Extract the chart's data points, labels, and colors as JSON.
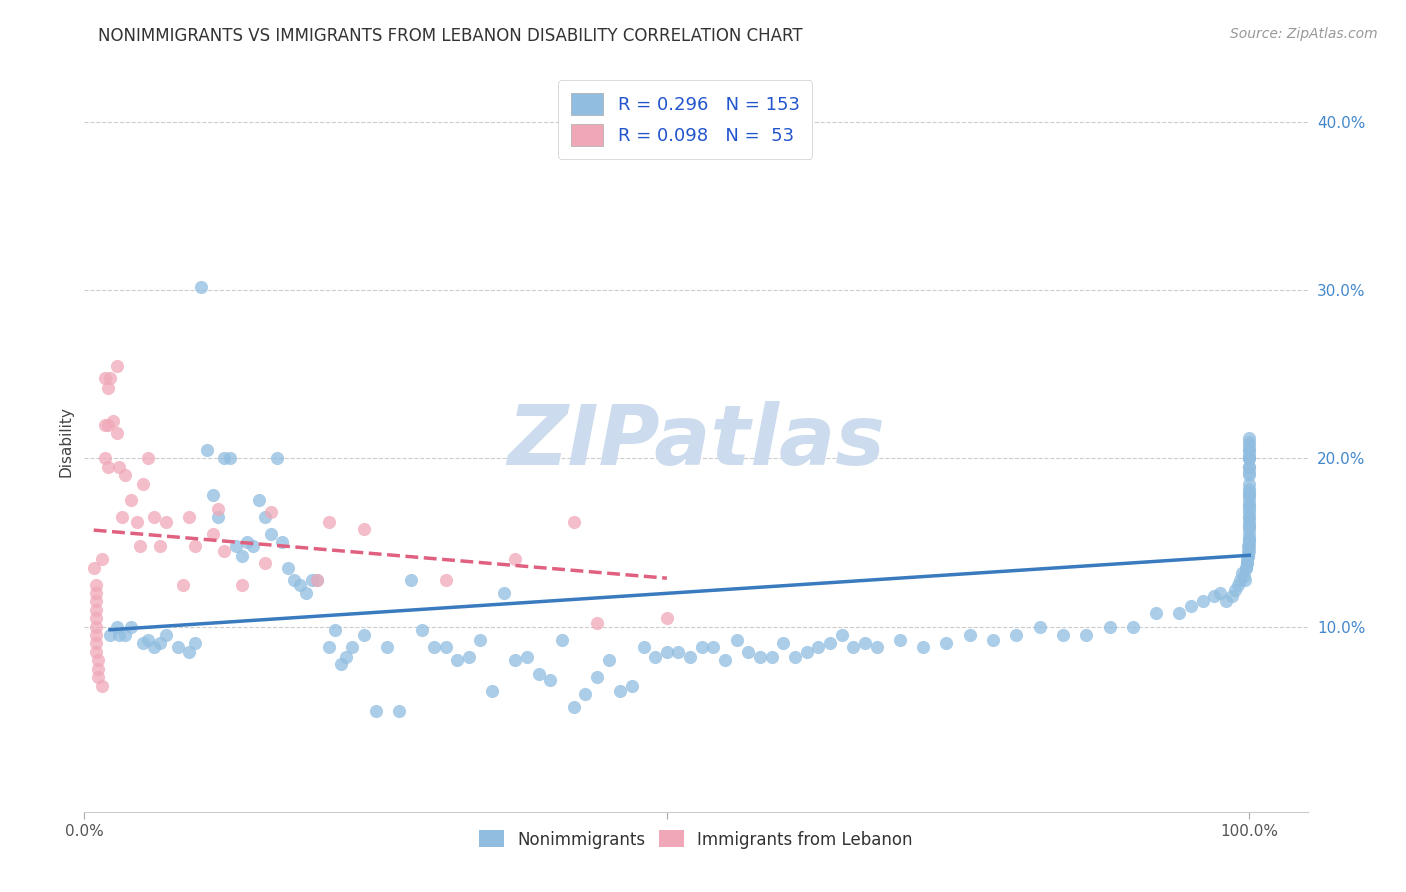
{
  "title": "NONIMMIGRANTS VS IMMIGRANTS FROM LEBANON DISABILITY CORRELATION CHART",
  "source": "Source: ZipAtlas.com",
  "ylabel": "Disability",
  "xlim": [
    0,
    1.05
  ],
  "ylim": [
    -0.01,
    0.43
  ],
  "nonimm_R": "0.296",
  "nonimm_N": "153",
  "imm_R": "0.098",
  "imm_N": " 53",
  "nonimm_color": "#90bde0",
  "imm_color": "#f0a8b8",
  "nonimm_line_color": "#3a7abf",
  "imm_line_color": "#e06080",
  "bg_color": "#ffffff",
  "watermark": "ZIPatlas",
  "watermark_color": "#ccdcee",
  "grid_color": "#cccccc",
  "nonimm_x": [
    0.022,
    0.028,
    0.03,
    0.035,
    0.04,
    0.05,
    0.055,
    0.06,
    0.065,
    0.07,
    0.08,
    0.09,
    0.095,
    0.1,
    0.105,
    0.11,
    0.115,
    0.12,
    0.125,
    0.13,
    0.135,
    0.14,
    0.145,
    0.15,
    0.155,
    0.16,
    0.165,
    0.17,
    0.175,
    0.18,
    0.185,
    0.19,
    0.195,
    0.2,
    0.21,
    0.215,
    0.22,
    0.225,
    0.23,
    0.24,
    0.25,
    0.26,
    0.27,
    0.28,
    0.29,
    0.3,
    0.31,
    0.32,
    0.33,
    0.34,
    0.35,
    0.36,
    0.37,
    0.38,
    0.39,
    0.4,
    0.41,
    0.42,
    0.43,
    0.44,
    0.45,
    0.46,
    0.47,
    0.48,
    0.49,
    0.5,
    0.51,
    0.52,
    0.53,
    0.54,
    0.55,
    0.56,
    0.57,
    0.58,
    0.59,
    0.6,
    0.61,
    0.62,
    0.63,
    0.64,
    0.65,
    0.66,
    0.67,
    0.68,
    0.7,
    0.72,
    0.74,
    0.76,
    0.78,
    0.8,
    0.82,
    0.84,
    0.86,
    0.88,
    0.9,
    0.92,
    0.94,
    0.95,
    0.96,
    0.97,
    0.975,
    0.98,
    0.985,
    0.988,
    0.99,
    0.992,
    0.994,
    0.995,
    0.996,
    0.997,
    0.997,
    0.998,
    0.998,
    0.998,
    0.999,
    0.999,
    0.999,
    0.999,
    1.0,
    1.0,
    1.0,
    1.0,
    1.0,
    1.0,
    1.0,
    1.0,
    1.0,
    1.0,
    1.0,
    1.0,
    1.0,
    1.0,
    1.0,
    1.0,
    1.0,
    1.0,
    1.0,
    1.0,
    1.0,
    1.0,
    1.0,
    1.0,
    1.0,
    1.0,
    1.0,
    1.0,
    1.0,
    1.0,
    1.0,
    1.0,
    1.0,
    1.0,
    1.0
  ],
  "nonimm_y": [
    0.095,
    0.1,
    0.095,
    0.095,
    0.1,
    0.09,
    0.092,
    0.088,
    0.09,
    0.095,
    0.088,
    0.085,
    0.09,
    0.302,
    0.205,
    0.178,
    0.165,
    0.2,
    0.2,
    0.148,
    0.142,
    0.15,
    0.148,
    0.175,
    0.165,
    0.155,
    0.2,
    0.15,
    0.135,
    0.128,
    0.125,
    0.12,
    0.128,
    0.128,
    0.088,
    0.098,
    0.078,
    0.082,
    0.088,
    0.095,
    0.05,
    0.088,
    0.05,
    0.128,
    0.098,
    0.088,
    0.088,
    0.08,
    0.082,
    0.092,
    0.062,
    0.12,
    0.08,
    0.082,
    0.072,
    0.068,
    0.092,
    0.052,
    0.06,
    0.07,
    0.08,
    0.062,
    0.065,
    0.088,
    0.082,
    0.085,
    0.085,
    0.082,
    0.088,
    0.088,
    0.08,
    0.092,
    0.085,
    0.082,
    0.082,
    0.09,
    0.082,
    0.085,
    0.088,
    0.09,
    0.095,
    0.088,
    0.09,
    0.088,
    0.092,
    0.088,
    0.09,
    0.095,
    0.092,
    0.095,
    0.1,
    0.095,
    0.095,
    0.1,
    0.1,
    0.108,
    0.108,
    0.112,
    0.115,
    0.118,
    0.12,
    0.115,
    0.118,
    0.122,
    0.125,
    0.128,
    0.132,
    0.13,
    0.128,
    0.135,
    0.135,
    0.138,
    0.14,
    0.138,
    0.142,
    0.145,
    0.142,
    0.148,
    0.145,
    0.148,
    0.152,
    0.15,
    0.152,
    0.155,
    0.158,
    0.16,
    0.162,
    0.16,
    0.165,
    0.165,
    0.168,
    0.17,
    0.172,
    0.175,
    0.172,
    0.178,
    0.178,
    0.182,
    0.18,
    0.185,
    0.19,
    0.192,
    0.195,
    0.195,
    0.2,
    0.2,
    0.2,
    0.202,
    0.205,
    0.205,
    0.208,
    0.21,
    0.212
  ],
  "imm_x": [
    0.008,
    0.01,
    0.01,
    0.01,
    0.01,
    0.01,
    0.01,
    0.01,
    0.01,
    0.01,
    0.012,
    0.012,
    0.012,
    0.015,
    0.015,
    0.018,
    0.018,
    0.018,
    0.02,
    0.02,
    0.02,
    0.022,
    0.025,
    0.028,
    0.028,
    0.03,
    0.032,
    0.035,
    0.04,
    0.045,
    0.048,
    0.05,
    0.055,
    0.06,
    0.065,
    0.07,
    0.085,
    0.09,
    0.095,
    0.11,
    0.115,
    0.12,
    0.135,
    0.155,
    0.16,
    0.2,
    0.21,
    0.24,
    0.31,
    0.37,
    0.42,
    0.44,
    0.5
  ],
  "imm_y": [
    0.135,
    0.125,
    0.12,
    0.115,
    0.11,
    0.105,
    0.1,
    0.095,
    0.09,
    0.085,
    0.08,
    0.075,
    0.07,
    0.065,
    0.14,
    0.248,
    0.22,
    0.2,
    0.242,
    0.22,
    0.195,
    0.248,
    0.222,
    0.255,
    0.215,
    0.195,
    0.165,
    0.19,
    0.175,
    0.162,
    0.148,
    0.185,
    0.2,
    0.165,
    0.148,
    0.162,
    0.125,
    0.165,
    0.148,
    0.155,
    0.17,
    0.145,
    0.125,
    0.138,
    0.168,
    0.128,
    0.162,
    0.158,
    0.128,
    0.14,
    0.162,
    0.102,
    0.105
  ]
}
